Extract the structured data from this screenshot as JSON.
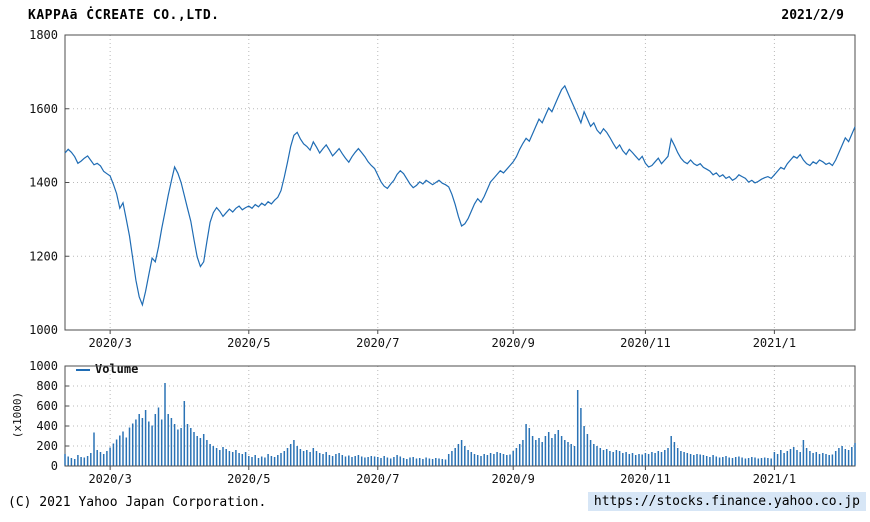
{
  "header": {
    "title": "KAPPAã ĊCREATE CO.,LTD.",
    "date": "2021/2/9"
  },
  "footer": {
    "copyright": "(C) 2021 Yahoo Japan Corporation.",
    "url": "https://stocks.finance.yahoo.co.jp"
  },
  "colors": {
    "price_line": "#1f6cb4",
    "volume_bar": "#2a72b5",
    "grid": "#b9b9b9",
    "frame": "#4d4d4d",
    "url_background": "#d7e6f6"
  },
  "chart_data": [
    {
      "type": "line",
      "title": "KAPPAã ĊCREATE CO.,LTD. daily close price",
      "xlabel": "",
      "ylabel": "",
      "ylim": [
        1000,
        1800
      ],
      "yticks": [
        1000,
        1200,
        1400,
        1600,
        1800
      ],
      "grid": true,
      "color": "#1f6cb4",
      "xtick_indices": [
        14,
        57,
        97,
        139,
        180,
        220
      ],
      "xtick_labels": [
        "2020/3",
        "2020/5",
        "2020/7",
        "2020/9",
        "2020/11",
        "2021/1"
      ],
      "values": [
        1480,
        1490,
        1482,
        1470,
        1452,
        1458,
        1466,
        1472,
        1460,
        1448,
        1452,
        1445,
        1430,
        1424,
        1418,
        1395,
        1370,
        1330,
        1345,
        1300,
        1255,
        1195,
        1135,
        1090,
        1068,
        1105,
        1150,
        1195,
        1185,
        1225,
        1275,
        1320,
        1365,
        1405,
        1442,
        1425,
        1400,
        1365,
        1330,
        1295,
        1245,
        1198,
        1172,
        1185,
        1240,
        1292,
        1318,
        1332,
        1322,
        1308,
        1318,
        1328,
        1320,
        1330,
        1336,
        1326,
        1332,
        1336,
        1330,
        1340,
        1334,
        1344,
        1338,
        1348,
        1342,
        1352,
        1360,
        1378,
        1415,
        1455,
        1498,
        1528,
        1536,
        1518,
        1505,
        1498,
        1488,
        1510,
        1496,
        1480,
        1492,
        1502,
        1488,
        1472,
        1482,
        1492,
        1478,
        1466,
        1455,
        1470,
        1482,
        1492,
        1481,
        1470,
        1456,
        1446,
        1438,
        1420,
        1402,
        1390,
        1384,
        1396,
        1406,
        1422,
        1432,
        1424,
        1410,
        1396,
        1386,
        1392,
        1402,
        1396,
        1406,
        1400,
        1394,
        1400,
        1406,
        1398,
        1394,
        1388,
        1368,
        1340,
        1308,
        1282,
        1288,
        1302,
        1322,
        1342,
        1356,
        1346,
        1362,
        1382,
        1402,
        1412,
        1422,
        1432,
        1426,
        1436,
        1446,
        1456,
        1470,
        1490,
        1506,
        1520,
        1512,
        1532,
        1552,
        1572,
        1562,
        1582,
        1602,
        1592,
        1612,
        1632,
        1652,
        1662,
        1642,
        1622,
        1602,
        1582,
        1562,
        1592,
        1572,
        1552,
        1562,
        1542,
        1532,
        1546,
        1536,
        1522,
        1506,
        1492,
        1502,
        1486,
        1476,
        1490,
        1481,
        1471,
        1461,
        1471,
        1452,
        1442,
        1446,
        1456,
        1466,
        1451,
        1461,
        1471,
        1518,
        1501,
        1481,
        1466,
        1456,
        1451,
        1461,
        1451,
        1446,
        1451,
        1441,
        1436,
        1431,
        1421,
        1426,
        1416,
        1421,
        1411,
        1416,
        1406,
        1411,
        1421,
        1416,
        1411,
        1401,
        1406,
        1399,
        1403,
        1409,
        1413,
        1416,
        1411,
        1421,
        1431,
        1441,
        1436,
        1451,
        1461,
        1471,
        1466,
        1476,
        1461,
        1451,
        1446,
        1456,
        1451,
        1461,
        1456,
        1449,
        1453,
        1446,
        1461,
        1481,
        1501,
        1521,
        1511,
        1531,
        1551
      ]
    },
    {
      "type": "bar",
      "title": "Trading volume",
      "legend": "Volume",
      "xlabel": "",
      "ylabel": "(x1000)",
      "ylim": [
        0,
        1000
      ],
      "yticks": [
        0,
        200,
        400,
        600,
        800,
        1000
      ],
      "grid": true,
      "color": "#2a72b5",
      "legend_position": "top-left",
      "xtick_indices": [
        14,
        57,
        97,
        139,
        180,
        220
      ],
      "xtick_labels": [
        "2020/3",
        "2020/5",
        "2020/7",
        "2020/9",
        "2020/11",
        "2021/1"
      ],
      "values": [
        120,
        95,
        80,
        70,
        110,
        90,
        85,
        100,
        130,
        335,
        160,
        140,
        120,
        150,
        185,
        225,
        265,
        305,
        345,
        285,
        385,
        425,
        465,
        520,
        480,
        560,
        445,
        405,
        520,
        585,
        465,
        830,
        520,
        480,
        420,
        365,
        380,
        650,
        420,
        380,
        340,
        300,
        280,
        320,
        260,
        220,
        200,
        180,
        160,
        190,
        170,
        150,
        140,
        160,
        130,
        120,
        140,
        100,
        90,
        110,
        80,
        95,
        85,
        120,
        100,
        90,
        110,
        130,
        150,
        180,
        220,
        260,
        200,
        170,
        150,
        160,
        140,
        180,
        150,
        130,
        120,
        140,
        110,
        100,
        120,
        130,
        110,
        95,
        105,
        90,
        100,
        110,
        95,
        85,
        90,
        100,
        95,
        90,
        80,
        100,
        85,
        75,
        90,
        110,
        95,
        80,
        70,
        85,
        90,
        75,
        80,
        70,
        85,
        75,
        70,
        80,
        75,
        70,
        65,
        120,
        150,
        180,
        220,
        260,
        200,
        160,
        140,
        120,
        110,
        100,
        120,
        110,
        130,
        120,
        140,
        130,
        120,
        110,
        115,
        150,
        180,
        220,
        260,
        420,
        380,
        300,
        260,
        280,
        240,
        300,
        340,
        280,
        320,
        360,
        300,
        260,
        240,
        220,
        200,
        760,
        580,
        400,
        320,
        260,
        220,
        200,
        180,
        160,
        170,
        150,
        140,
        160,
        150,
        130,
        140,
        120,
        130,
        110,
        120,
        115,
        130,
        120,
        140,
        130,
        150,
        140,
        160,
        180,
        300,
        240,
        180,
        150,
        140,
        130,
        120,
        110,
        120,
        115,
        110,
        100,
        90,
        110,
        95,
        85,
        90,
        100,
        85,
        80,
        90,
        95,
        85,
        75,
        80,
        90,
        85,
        75,
        80,
        85,
        80,
        75,
        140,
        120,
        160,
        130,
        150,
        170,
        190,
        160,
        140,
        260,
        180,
        150,
        130,
        140,
        120,
        130,
        120,
        110,
        115,
        150,
        180,
        200,
        170,
        160,
        190,
        230
      ]
    }
  ]
}
